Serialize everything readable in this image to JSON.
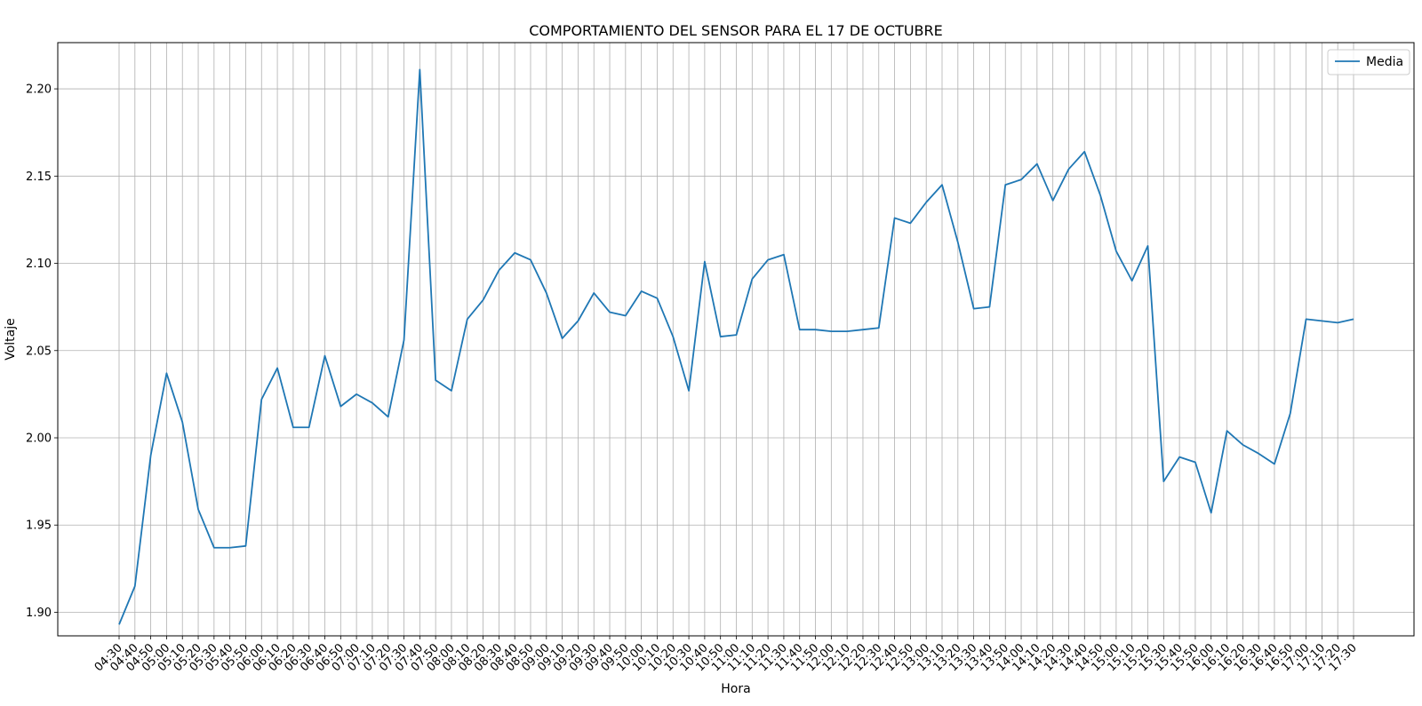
{
  "chart_data": {
    "type": "line",
    "title": "COMPORTAMIENTO DEL SENSOR PARA EL 17 DE OCTUBRE",
    "xlabel": "Hora",
    "ylabel": "Voltaje",
    "ylim": [
      1.8865,
      2.2265
    ],
    "yticks": [
      "1.90",
      "1.95",
      "2.00",
      "2.05",
      "2.10",
      "2.15",
      "2.20"
    ],
    "grid": true,
    "legend_position": "top-right",
    "series_color": "#1f77b4",
    "categories": [
      "04:30",
      "04:40",
      "04:50",
      "05:00",
      "05:10",
      "05:20",
      "05:30",
      "05:40",
      "05:50",
      "06:00",
      "06:10",
      "06:20",
      "06:30",
      "06:40",
      "06:50",
      "07:00",
      "07:10",
      "07:20",
      "07:30",
      "07:40",
      "07:50",
      "08:00",
      "08:10",
      "08:20",
      "08:30",
      "08:40",
      "08:50",
      "09:00",
      "09:10",
      "09:20",
      "09:30",
      "09:40",
      "09:50",
      "10:00",
      "10:10",
      "10:20",
      "10:30",
      "10:40",
      "10:50",
      "11:00",
      "11:10",
      "11:20",
      "11:30",
      "11:40",
      "11:50",
      "12:00",
      "12:10",
      "12:20",
      "12:30",
      "12:40",
      "12:50",
      "13:00",
      "13:10",
      "13:20",
      "13:30",
      "13:40",
      "13:50",
      "14:00",
      "14:10",
      "14:20",
      "14:30",
      "14:40",
      "14:50",
      "15:00",
      "15:10",
      "15:20",
      "15:30",
      "15:40",
      "15:50",
      "16:00",
      "16:10",
      "16:20",
      "16:30",
      "16:40",
      "16:50",
      "17:00",
      "17:10",
      "17:20",
      "17:30"
    ],
    "series": [
      {
        "name": "Media",
        "values": [
          1.893,
          1.915,
          1.99,
          2.037,
          2.009,
          1.959,
          1.937,
          1.937,
          1.938,
          2.022,
          2.04,
          2.006,
          2.006,
          2.047,
          2.018,
          2.025,
          2.02,
          2.012,
          2.056,
          2.211,
          2.033,
          2.027,
          2.068,
          2.079,
          2.096,
          2.106,
          2.102,
          2.083,
          2.057,
          2.067,
          2.083,
          2.072,
          2.07,
          2.084,
          2.08,
          2.058,
          2.027,
          2.101,
          2.058,
          2.059,
          2.091,
          2.102,
          2.105,
          2.062,
          2.062,
          2.061,
          2.061,
          2.062,
          2.063,
          2.126,
          2.123,
          2.135,
          2.145,
          2.112,
          2.074,
          2.075,
          2.145,
          2.148,
          2.157,
          2.136,
          2.154,
          2.164,
          2.139,
          2.107,
          2.09,
          2.11,
          1.975,
          1.989,
          1.986,
          1.957,
          2.004,
          1.996,
          1.991,
          1.985,
          2.014,
          2.068,
          2.067,
          2.066,
          2.068
        ]
      }
    ]
  }
}
